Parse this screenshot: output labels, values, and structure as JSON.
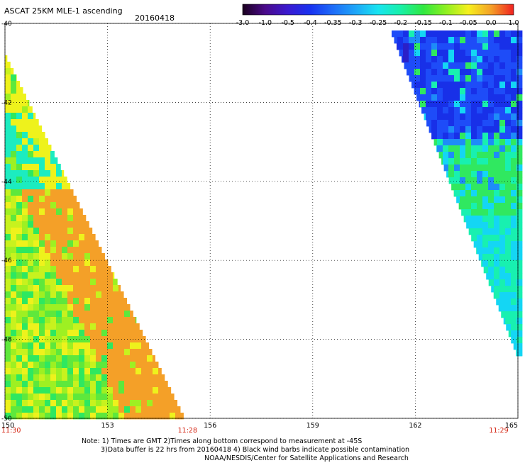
{
  "title": "ASCAT 25KM MLE-1 ascending",
  "date": "20160418",
  "colorbar": {
    "labels": [
      "-3.0",
      "-1.0",
      "-0.5",
      "-0.4",
      "-0.35",
      "-0.3",
      "-0.25",
      "-0.2",
      "-0.15",
      "-0.1",
      "-0.05",
      "0.0",
      "1.0"
    ],
    "colors": [
      "#1a001e",
      "#4a0a8a",
      "#3a1ad0",
      "#1832f0",
      "#1e6cf8",
      "#1ea6f8",
      "#18e4f0",
      "#18f0a8",
      "#30e840",
      "#8ef020",
      "#f6f01e",
      "#f4a028",
      "#f02020"
    ]
  },
  "axes": {
    "lat_ticks": [
      "-40",
      "-42",
      "-44",
      "-46",
      "-48",
      "-50"
    ],
    "lon_ticks": [
      "150",
      "153",
      "156",
      "159",
      "162",
      "165"
    ],
    "time_labels": [
      {
        "label": "11:30",
        "lon": 150
      },
      {
        "label": "11:28",
        "lon": 155.2
      },
      {
        "label": "11:29",
        "lon": 164.3
      }
    ]
  },
  "notes": [
    "Note: 1) Times are GMT 2)Times along bottom correspond to measurement at -45S",
    "3)Data buffer is 22 hrs from 20160418 4) Black wind barbs indicate possible contamination",
    "NOAA/NESDIS/Center for Satellite Applications and Research"
  ],
  "palette": {
    "text_red": "#d4210f",
    "left_swath_colors": [
      "#9ef022",
      "#c8f21e",
      "#eef21c",
      "#5ee83c",
      "#2ee860",
      "#1cecc0",
      "#3ae870",
      "#f4a028"
    ],
    "right_swath_colors": [
      "#1e4cf8",
      "#1830e8",
      "#2a20c8",
      "#1e8cf8",
      "#14d6f4",
      "#18f0b0",
      "#30e860"
    ]
  }
}
